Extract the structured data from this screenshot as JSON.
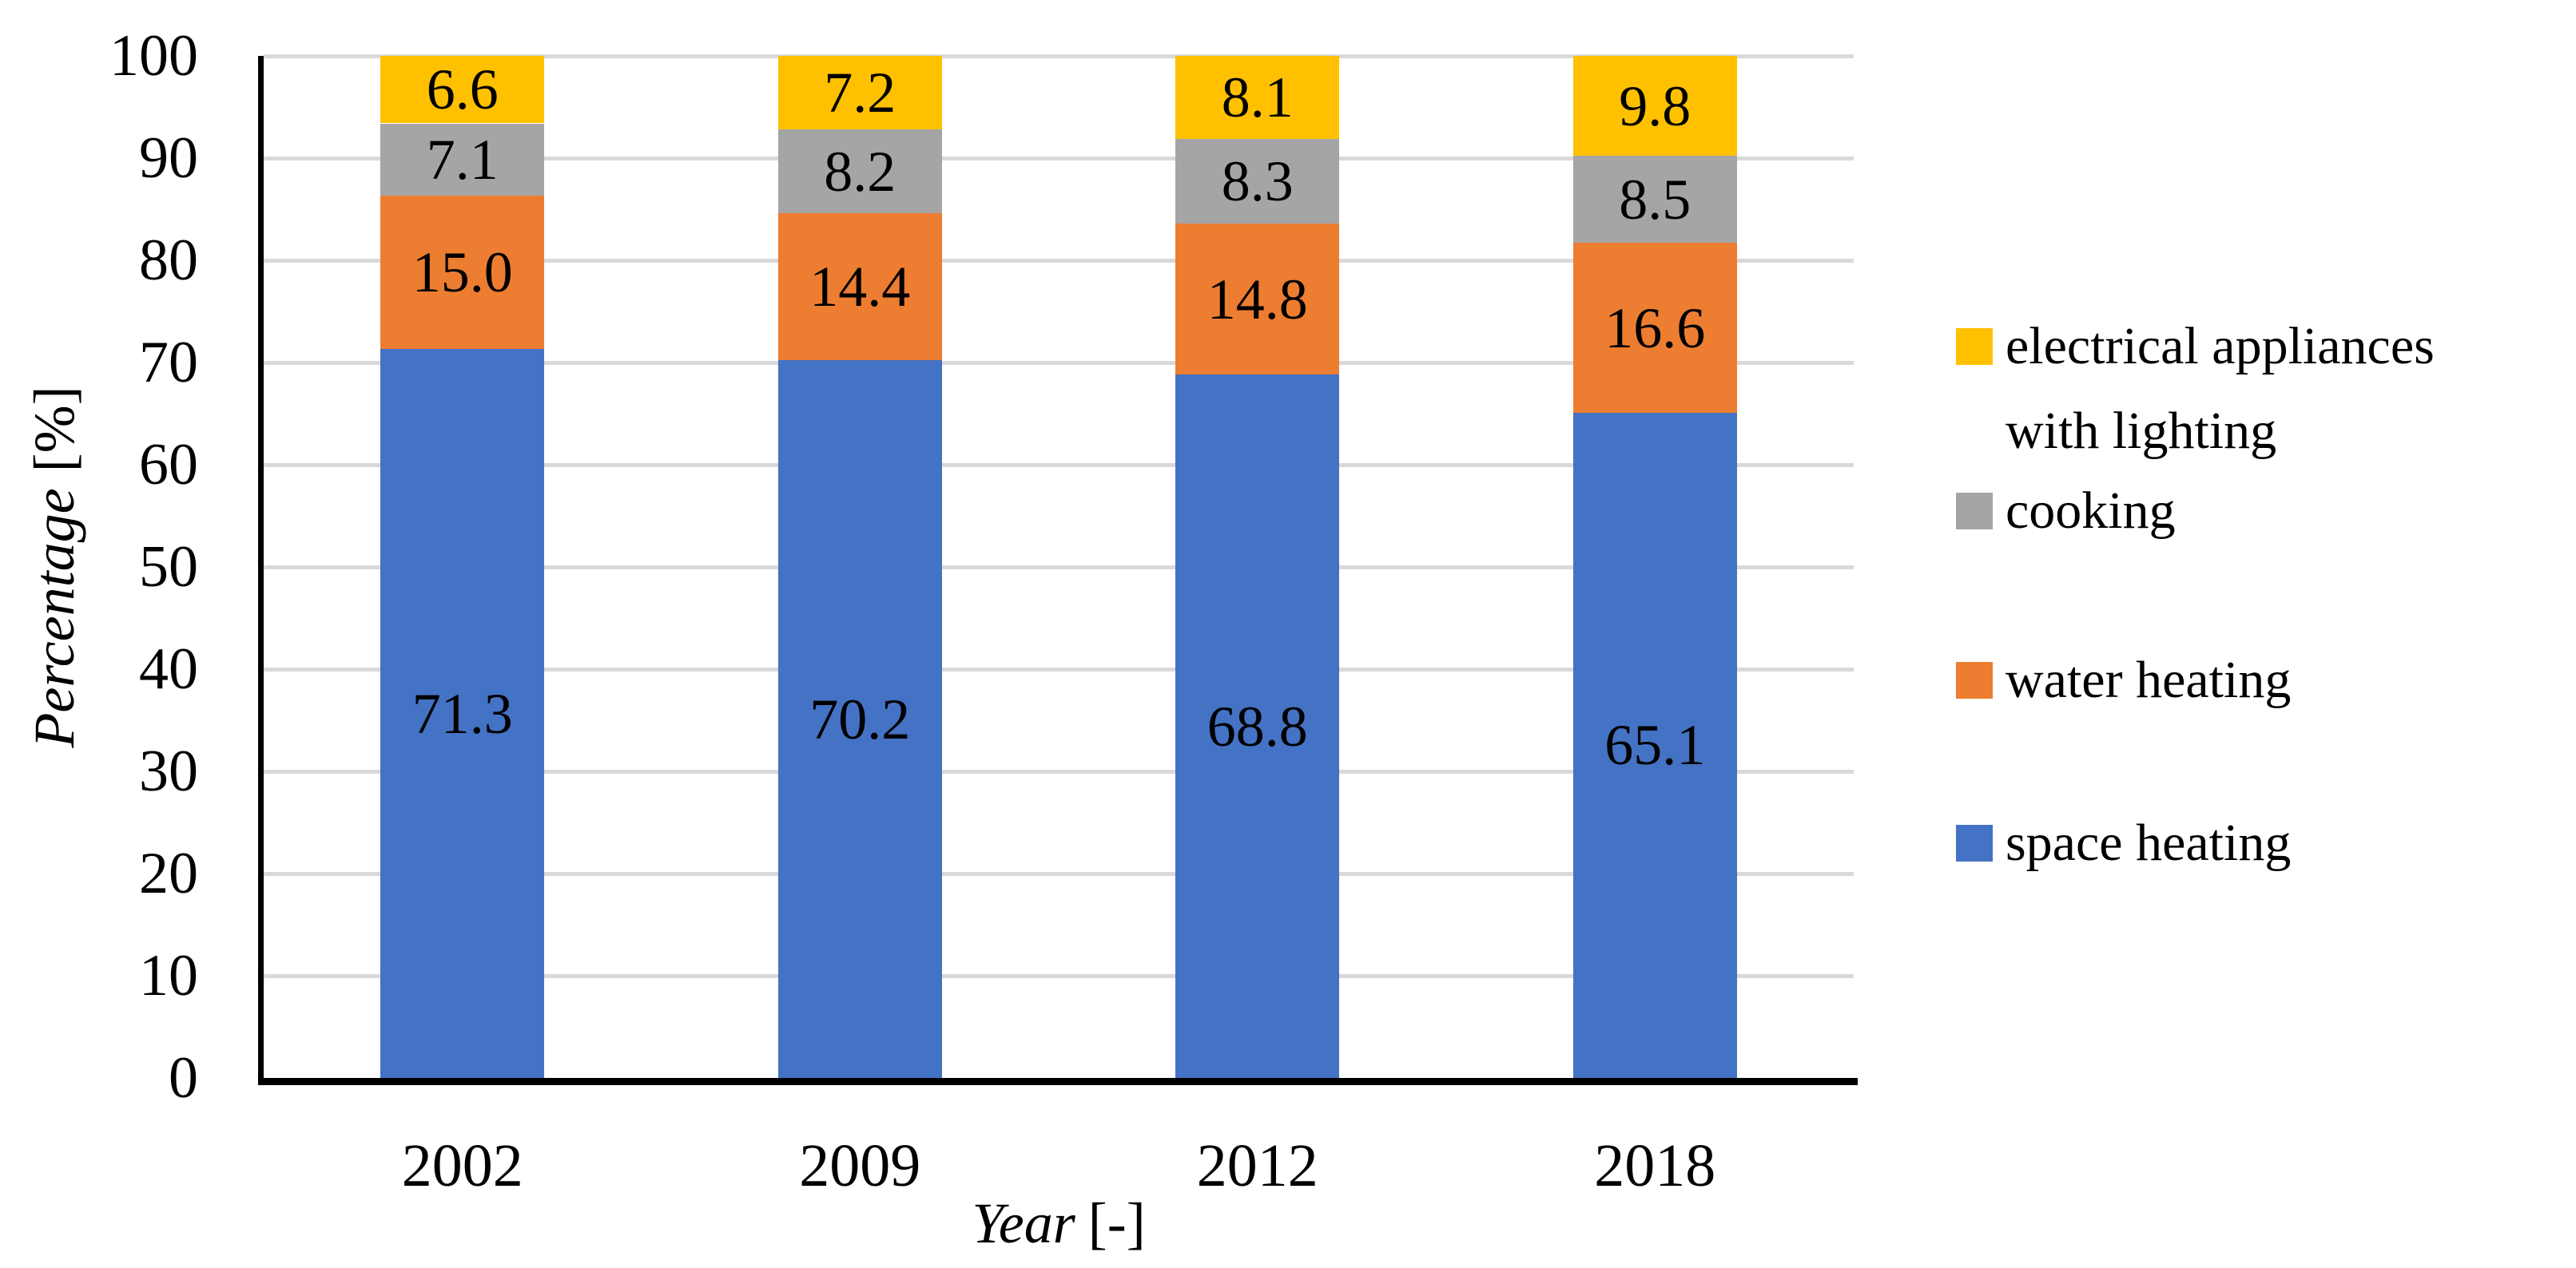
{
  "chart_data": {
    "type": "bar",
    "stacked": true,
    "categories": [
      "2002",
      "2009",
      "2012",
      "2018"
    ],
    "series": [
      {
        "name": "space heating",
        "color": "#4472C4",
        "values": [
          71.3,
          70.2,
          68.8,
          65.1
        ]
      },
      {
        "name": "water heating",
        "color": "#ED7D31",
        "values": [
          15.0,
          14.4,
          14.8,
          16.6
        ]
      },
      {
        "name": "cooking",
        "color": "#A5A5A5",
        "values": [
          7.1,
          8.2,
          8.3,
          8.5
        ]
      },
      {
        "name": "electrical appliances with lighting",
        "color": "#FFC000",
        "values": [
          6.6,
          7.2,
          8.1,
          9.8
        ]
      }
    ],
    "value_decimals": 1,
    "xlabel": "Year",
    "xlabel_unit": "[-]",
    "ylabel": "Percentage",
    "ylabel_unit": "[%]",
    "ylim": [
      0,
      100
    ],
    "ytick_step": 10,
    "grid": true,
    "legend_position": "right",
    "legend_entries": [
      {
        "label": "electrical appliances\nwith lighting",
        "color": "#FFC000"
      },
      {
        "label": "cooking",
        "color": "#A5A5A5"
      },
      {
        "label": "water heating",
        "color": "#ED7D31"
      },
      {
        "label": "space heating",
        "color": "#4472C4"
      }
    ],
    "colors": {
      "axis": "#000000",
      "gridline": "#D9D9D9",
      "label_text": "#000000",
      "background": "#FFFFFF"
    }
  }
}
